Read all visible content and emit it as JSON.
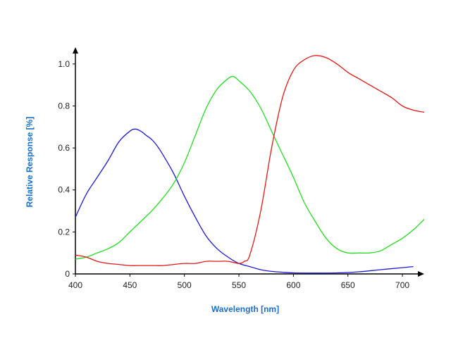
{
  "chart_data": {
    "type": "line",
    "title": "",
    "xlabel": "Wavelength [nm]",
    "ylabel": "Relative Response [%]",
    "xlim": [
      400,
      720
    ],
    "ylim": [
      0,
      1.08
    ],
    "xticks": [
      400,
      450,
      500,
      550,
      600,
      650,
      700
    ],
    "yticks": [
      0,
      0.2,
      0.4,
      0.6,
      0.8,
      1.0
    ],
    "xtick_labels": [
      "400",
      "450",
      "500",
      "550",
      "600",
      "650",
      "700"
    ],
    "ytick_labels": [
      "0",
      "0.2",
      "0.4",
      "0.6",
      "0.8",
      "1.0"
    ],
    "grid": false,
    "legend": "none",
    "series": [
      {
        "color": "#1a1ad6",
        "x": [
          400,
          410,
          420,
          430,
          440,
          450,
          455,
          460,
          465,
          470,
          475,
          480,
          490,
          500,
          510,
          520,
          530,
          540,
          550,
          560,
          570,
          580,
          590,
          600,
          620,
          640,
          660,
          680,
          700,
          710
        ],
        "y": [
          0.27,
          0.38,
          0.46,
          0.54,
          0.63,
          0.68,
          0.69,
          0.68,
          0.66,
          0.64,
          0.61,
          0.57,
          0.48,
          0.37,
          0.27,
          0.18,
          0.12,
          0.08,
          0.05,
          0.035,
          0.02,
          0.012,
          0.008,
          0.005,
          0.004,
          0.005,
          0.01,
          0.02,
          0.03,
          0.035
        ]
      },
      {
        "color": "#22dd22",
        "x": [
          400,
          410,
          420,
          430,
          440,
          450,
          460,
          470,
          480,
          490,
          500,
          510,
          520,
          530,
          540,
          545,
          550,
          560,
          570,
          580,
          590,
          600,
          610,
          620,
          630,
          640,
          650,
          660,
          670,
          680,
          690,
          700,
          710,
          720
        ],
        "y": [
          0.07,
          0.08,
          0.1,
          0.12,
          0.15,
          0.2,
          0.25,
          0.3,
          0.36,
          0.43,
          0.53,
          0.66,
          0.79,
          0.88,
          0.93,
          0.94,
          0.92,
          0.87,
          0.79,
          0.68,
          0.57,
          0.46,
          0.34,
          0.25,
          0.17,
          0.12,
          0.1,
          0.1,
          0.1,
          0.11,
          0.14,
          0.17,
          0.21,
          0.26
        ]
      },
      {
        "color": "#e01818",
        "x": [
          400,
          410,
          420,
          430,
          440,
          450,
          460,
          470,
          480,
          490,
          500,
          510,
          520,
          530,
          540,
          550,
          555,
          560,
          570,
          580,
          590,
          600,
          610,
          620,
          630,
          640,
          650,
          660,
          670,
          680,
          690,
          700,
          710,
          720
        ],
        "y": [
          0.09,
          0.08,
          0.06,
          0.05,
          0.045,
          0.04,
          0.04,
          0.04,
          0.04,
          0.045,
          0.05,
          0.05,
          0.06,
          0.06,
          0.06,
          0.05,
          0.06,
          0.09,
          0.3,
          0.6,
          0.84,
          0.97,
          1.02,
          1.04,
          1.03,
          1.0,
          0.96,
          0.93,
          0.9,
          0.87,
          0.84,
          0.8,
          0.78,
          0.77
        ]
      }
    ]
  }
}
